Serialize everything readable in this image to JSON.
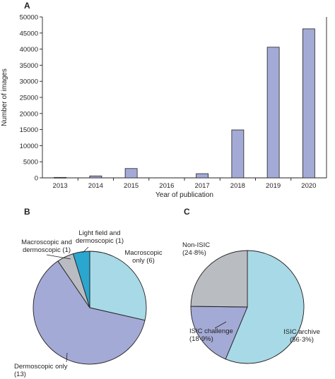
{
  "panels": {
    "a": "A",
    "b": "B",
    "c": "C"
  },
  "chart_data": [
    {
      "type": "bar",
      "panel": "A",
      "categories": [
        "2013",
        "2014",
        "2015",
        "2016",
        "2017",
        "2018",
        "2019",
        "2020"
      ],
      "values": [
        150,
        600,
        2900,
        0,
        1300,
        14900,
        40600,
        46300
      ],
      "xlabel": "Year of publication",
      "ylabel": "Number of images",
      "ylim": [
        0,
        50000
      ],
      "yticks": [
        0,
        5000,
        10000,
        15000,
        20000,
        25000,
        30000,
        35000,
        40000,
        45000,
        50000
      ],
      "grid": false,
      "color": "#a3aad6"
    },
    {
      "type": "pie",
      "panel": "B",
      "slices": [
        {
          "label_lines": [
            "Macroscopic",
            "only (6)"
          ],
          "value": 6,
          "color": "#a7d9e6"
        },
        {
          "label_lines": [
            "Dermoscopic only",
            "(13)"
          ],
          "value": 13,
          "color": "#a3aad6"
        },
        {
          "label_lines": [
            "Macroscopic and",
            "dermoscopic (1)"
          ],
          "value": 1,
          "color": "#b9bdc1"
        },
        {
          "label_lines": [
            "Light field and",
            "dermoscopic (1)"
          ],
          "value": 1,
          "color": "#2aa6cf"
        }
      ]
    },
    {
      "type": "pie",
      "panel": "C",
      "slices": [
        {
          "label_lines": [
            "ISIC archive",
            "(56·3%)"
          ],
          "value": 56.3,
          "color": "#a7d9e6"
        },
        {
          "label_lines": [
            "ISIC challenge",
            "(18·9%)"
          ],
          "value": 18.9,
          "color": "#a3aad6"
        },
        {
          "label_lines": [
            "Non-ISIC",
            "(24·8%)"
          ],
          "value": 24.8,
          "color": "#b9bdc1"
        }
      ]
    }
  ]
}
